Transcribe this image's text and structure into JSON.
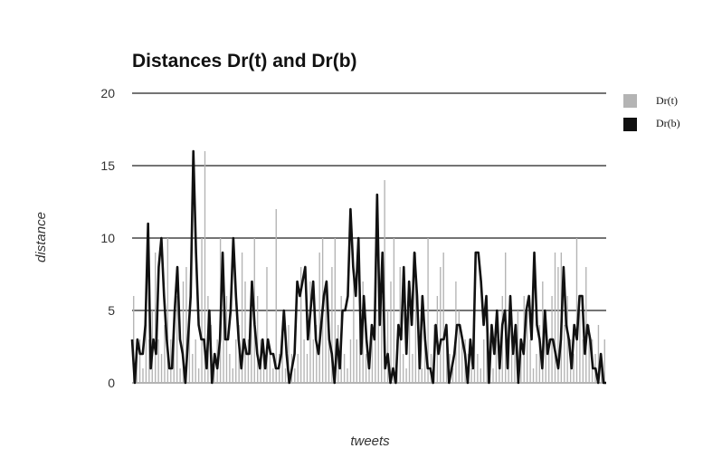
{
  "chart_data": {
    "type": "bar",
    "title": "Distances Dr(t) and Dr(b)",
    "xlabel": "tweets",
    "ylabel": "distance",
    "ylim": [
      0,
      20
    ],
    "yticks": [
      0,
      5,
      10,
      15,
      20
    ],
    "grid": true,
    "legend_position": "top-right",
    "series": [
      {
        "name": "Dr(t)",
        "mark": "bar",
        "color": "#b4b4b4",
        "values": [
          6,
          2,
          3,
          1,
          4,
          3,
          5,
          9,
          3,
          2,
          4,
          10,
          3,
          5,
          6,
          1,
          7,
          8,
          4,
          2,
          3,
          1,
          10,
          16,
          6,
          4,
          2,
          3,
          10,
          5,
          6,
          2,
          1,
          3,
          4,
          9,
          7,
          3,
          5,
          10,
          6,
          3,
          2,
          8,
          2,
          1,
          12,
          2,
          3,
          1,
          4,
          2,
          1,
          2,
          8,
          3,
          2,
          7,
          3,
          4,
          9,
          10,
          7,
          5,
          8,
          10,
          4,
          6,
          2,
          1,
          3,
          8,
          3,
          5,
          7,
          2,
          1,
          4,
          3,
          8,
          6,
          14,
          5,
          7,
          10,
          3,
          8,
          2,
          1,
          5,
          2,
          9,
          3,
          1,
          3,
          10,
          2,
          4,
          6,
          8,
          9,
          3,
          2,
          1,
          7,
          5,
          3,
          3,
          2,
          1,
          4,
          2,
          1,
          3,
          4,
          2,
          1,
          3,
          2,
          6,
          9,
          4,
          2,
          3,
          5,
          2,
          6,
          5,
          3,
          1,
          2,
          4,
          7,
          5,
          3,
          6,
          9,
          8,
          9,
          4,
          6,
          3,
          2,
          10,
          5,
          3,
          8,
          4,
          3,
          2,
          4,
          1,
          3
        ]
      },
      {
        "name": "Dr(b)",
        "mark": "line",
        "color": "#111111",
        "values": [
          3,
          0,
          3,
          2,
          2,
          4,
          11,
          1,
          3,
          2,
          8,
          10,
          6,
          3,
          1,
          1,
          5,
          8,
          3,
          2,
          0,
          3,
          6,
          16,
          9,
          4,
          3,
          3,
          1,
          5,
          0,
          2,
          1,
          3,
          9,
          3,
          3,
          5,
          10,
          6,
          3,
          1,
          3,
          2,
          2,
          7,
          4,
          2,
          1,
          3,
          1,
          3,
          2,
          2,
          1,
          1,
          2,
          5,
          2,
          0,
          1,
          2,
          7,
          6,
          7,
          8,
          3,
          5,
          7,
          3,
          2,
          4,
          6,
          7,
          3,
          2,
          0,
          3,
          1,
          5,
          5,
          6,
          12,
          8,
          6,
          10,
          2,
          6,
          3,
          1,
          4,
          3,
          13,
          4,
          9,
          1,
          2,
          0,
          1,
          0,
          4,
          3,
          8,
          2,
          7,
          4,
          9,
          6,
          1,
          6,
          3,
          1,
          1,
          0,
          4,
          2,
          3,
          3,
          4,
          0,
          1,
          2,
          4,
          4,
          3,
          2,
          0,
          3,
          1,
          9,
          9,
          7,
          4,
          6,
          0,
          4,
          2,
          5,
          1,
          4,
          5,
          1,
          6,
          2,
          4,
          0,
          3,
          2,
          5,
          6,
          3,
          9,
          4,
          3,
          1,
          5,
          2,
          3,
          3,
          2,
          1,
          3,
          8,
          4,
          3,
          1,
          4,
          3,
          6,
          6,
          2,
          4,
          3,
          1,
          1,
          0,
          2,
          0,
          0
        ]
      }
    ]
  }
}
